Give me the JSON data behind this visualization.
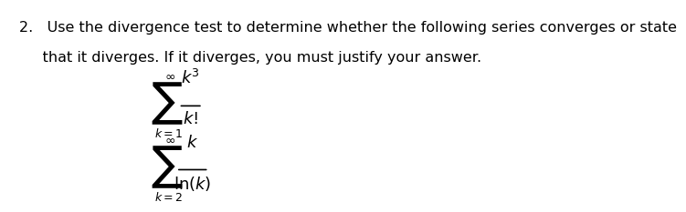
{
  "background_color": "#ffffff",
  "text_color": "#000000",
  "main_text_line1": "2.   Use the divergence test to determine whether the following series converges or state",
  "main_text_line2": "     that it diverges. If it diverges, you must justify your answer.",
  "series1_numerator": "$k^3$",
  "series1_denominator": "$k!$",
  "series1_index": "$k=1$",
  "series1_inf": "$\\infty$",
  "series2_numerator": "$k$",
  "series2_denominator": "$\\ln(k)$",
  "series2_index": "$k=2$",
  "series2_inf": "$\\infty$",
  "sigma": "$\\Sigma$",
  "fontsize_main": 11.5,
  "fontsize_formula": 13,
  "fontsize_sigma": 22,
  "fontsize_sup": 10,
  "fontsize_index": 9
}
